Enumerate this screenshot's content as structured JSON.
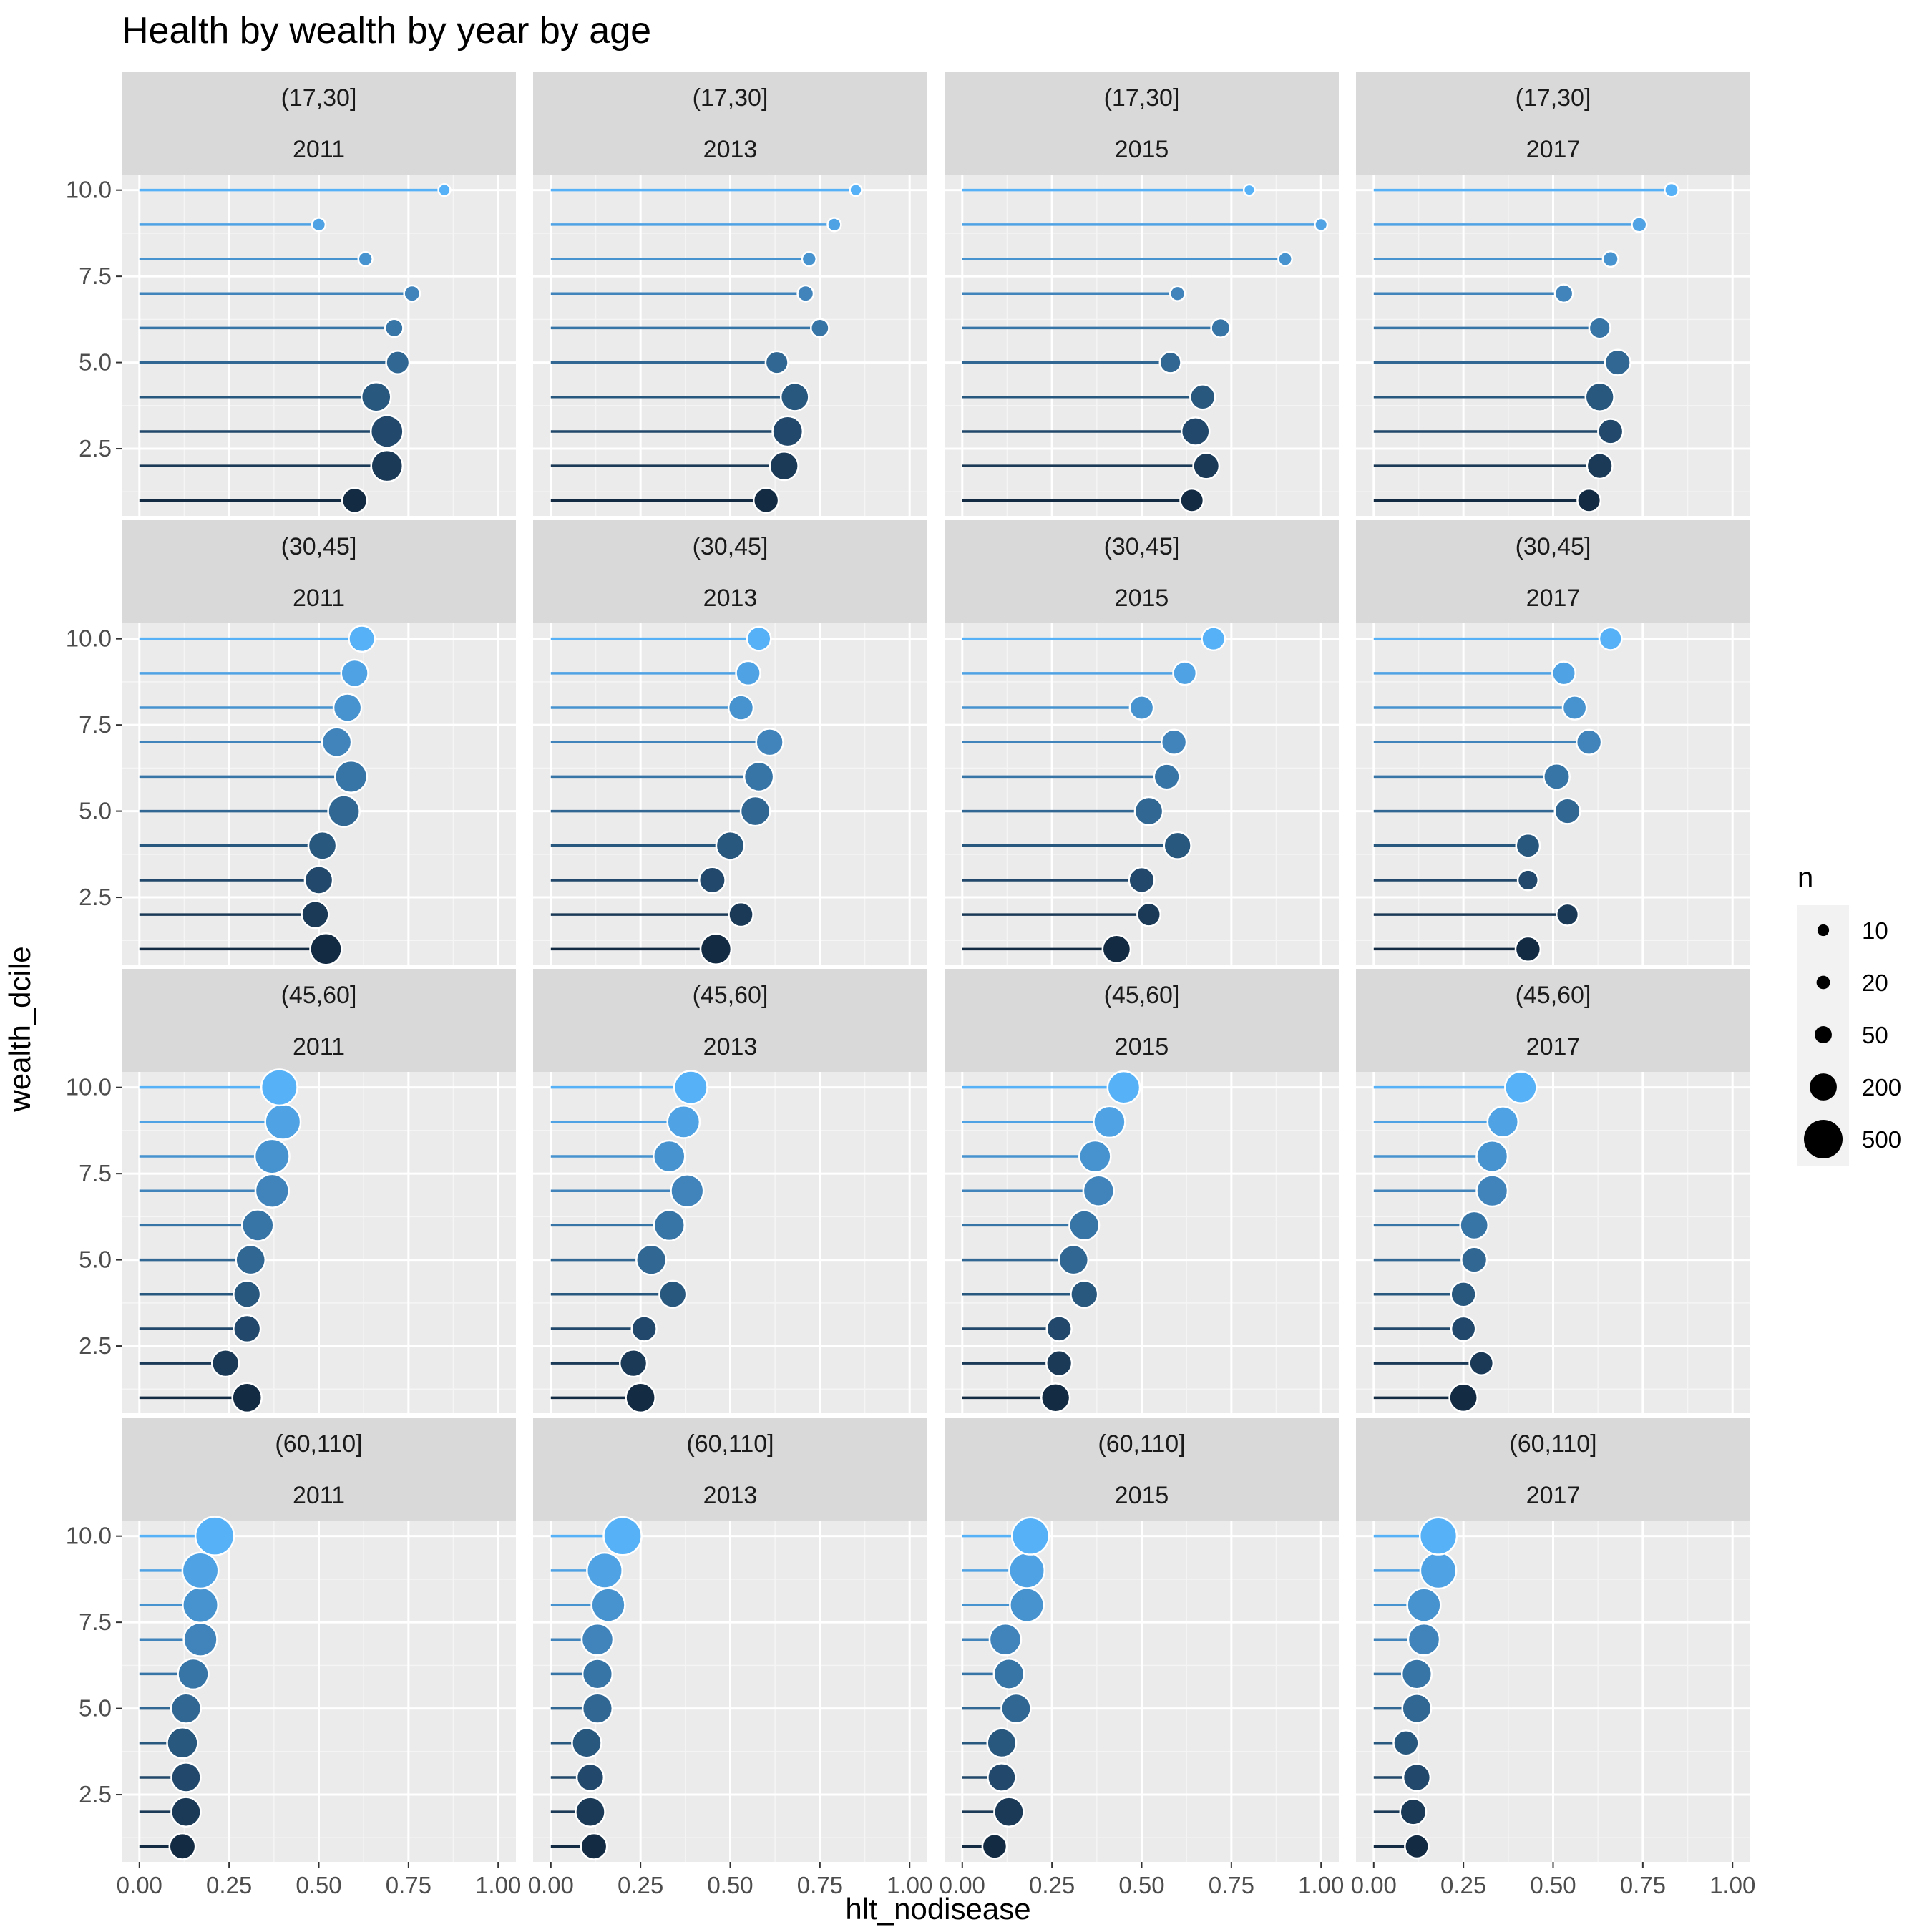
{
  "chart_data": {
    "type": "scatter",
    "subtype": "lollipop",
    "title": "Health by wealth by year by age",
    "xlabel": "hlt_nodisease",
    "ylabel": "wealth_dcile",
    "xlim": [
      0,
      1
    ],
    "ylim": [
      1,
      10
    ],
    "x_ticks": [
      "0.00",
      "0.25",
      "0.50",
      "0.75",
      "1.00"
    ],
    "y_ticks": [
      "2.5",
      "5.0",
      "7.5",
      "10.0"
    ],
    "grid": true,
    "facet_rows": [
      "(17,30]",
      "(30,45]",
      "(45,60]",
      "(60,110]"
    ],
    "facet_cols": [
      "2011",
      "2013",
      "2015",
      "2017"
    ],
    "colors": {
      "low": "#132B43",
      "high": "#56B1F7"
    },
    "legend": {
      "title": "n",
      "position": "right",
      "entries": [
        {
          "label": "10",
          "value": 10
        },
        {
          "label": "20",
          "value": 20
        },
        {
          "label": "50",
          "value": 50
        },
        {
          "label": "200",
          "value": 200
        },
        {
          "label": "500",
          "value": 500
        }
      ]
    },
    "panels": [
      {
        "age": "(17,30]",
        "year": "2011",
        "wealth_dcile": [
          1,
          2,
          3,
          4,
          5,
          6,
          7,
          8,
          9,
          10
        ],
        "hlt_nodisease": [
          0.6,
          0.69,
          0.69,
          0.66,
          0.72,
          0.71,
          0.76,
          0.63,
          0.5,
          0.85
        ],
        "n": [
          160,
          300,
          320,
          250,
          130,
          60,
          40,
          25,
          20,
          12
        ]
      },
      {
        "age": "(17,30]",
        "year": "2013",
        "wealth_dcile": [
          1,
          2,
          3,
          4,
          5,
          6,
          7,
          8,
          9,
          10
        ],
        "hlt_nodisease": [
          0.6,
          0.65,
          0.66,
          0.68,
          0.63,
          0.75,
          0.71,
          0.72,
          0.79,
          0.85
        ],
        "n": [
          160,
          230,
          270,
          220,
          120,
          60,
          40,
          25,
          20,
          12
        ]
      },
      {
        "age": "(17,30]",
        "year": "2015",
        "wealth_dcile": [
          1,
          2,
          3,
          4,
          5,
          6,
          7,
          8,
          9,
          10
        ],
        "hlt_nodisease": [
          0.64,
          0.68,
          0.65,
          0.67,
          0.58,
          0.72,
          0.6,
          0.9,
          1.0,
          0.8
        ],
        "n": [
          130,
          180,
          220,
          160,
          100,
          70,
          30,
          22,
          15,
          8
        ]
      },
      {
        "age": "(17,30]",
        "year": "2017",
        "wealth_dcile": [
          1,
          2,
          3,
          4,
          5,
          6,
          7,
          8,
          9,
          10
        ],
        "hlt_nodisease": [
          0.6,
          0.63,
          0.66,
          0.63,
          0.68,
          0.63,
          0.53,
          0.66,
          0.74,
          0.83
        ],
        "n": [
          130,
          170,
          160,
          230,
          170,
          100,
          60,
          35,
          30,
          22
        ]
      },
      {
        "age": "(30,45]",
        "year": "2011",
        "wealth_dcile": [
          1,
          2,
          3,
          4,
          5,
          6,
          7,
          8,
          9,
          10
        ],
        "hlt_nodisease": [
          0.52,
          0.49,
          0.5,
          0.51,
          0.57,
          0.59,
          0.55,
          0.58,
          0.6,
          0.62
        ],
        "n": [
          300,
          200,
          220,
          220,
          300,
          310,
          250,
          220,
          200,
          180
        ]
      },
      {
        "age": "(30,45]",
        "year": "2013",
        "wealth_dcile": [
          1,
          2,
          3,
          4,
          5,
          6,
          7,
          8,
          9,
          10
        ],
        "hlt_nodisease": [
          0.46,
          0.53,
          0.45,
          0.5,
          0.57,
          0.58,
          0.61,
          0.53,
          0.55,
          0.58
        ],
        "n": [
          280,
          150,
          180,
          220,
          250,
          250,
          200,
          160,
          150,
          140
        ]
      },
      {
        "age": "(30,45]",
        "year": "2015",
        "wealth_dcile": [
          1,
          2,
          3,
          4,
          5,
          6,
          7,
          8,
          9,
          10
        ],
        "hlt_nodisease": [
          0.43,
          0.52,
          0.5,
          0.6,
          0.52,
          0.57,
          0.59,
          0.5,
          0.62,
          0.7
        ],
        "n": [
          220,
          130,
          170,
          200,
          220,
          170,
          160,
          140,
          130,
          130
        ]
      },
      {
        "age": "(30,45]",
        "year": "2017",
        "wealth_dcile": [
          1,
          2,
          3,
          4,
          5,
          6,
          7,
          8,
          9,
          10
        ],
        "hlt_nodisease": [
          0.43,
          0.54,
          0.43,
          0.43,
          0.54,
          0.51,
          0.6,
          0.56,
          0.53,
          0.66
        ],
        "n": [
          160,
          110,
          90,
          140,
          170,
          180,
          160,
          140,
          130,
          120
        ]
      },
      {
        "age": "(45,60]",
        "year": "2011",
        "wealth_dcile": [
          1,
          2,
          3,
          4,
          5,
          6,
          7,
          8,
          9,
          10
        ],
        "hlt_nodisease": [
          0.3,
          0.24,
          0.3,
          0.3,
          0.31,
          0.33,
          0.37,
          0.37,
          0.4,
          0.39
        ],
        "n": [
          250,
          200,
          200,
          200,
          250,
          300,
          350,
          380,
          400,
          420
        ]
      },
      {
        "age": "(45,60]",
        "year": "2013",
        "wealth_dcile": [
          1,
          2,
          3,
          4,
          5,
          6,
          7,
          8,
          9,
          10
        ],
        "hlt_nodisease": [
          0.25,
          0.23,
          0.26,
          0.34,
          0.28,
          0.33,
          0.38,
          0.33,
          0.37,
          0.39
        ],
        "n": [
          250,
          200,
          160,
          200,
          260,
          280,
          330,
          300,
          320,
          340
        ]
      },
      {
        "age": "(45,60]",
        "year": "2015",
        "wealth_dcile": [
          1,
          2,
          3,
          4,
          5,
          6,
          7,
          8,
          9,
          10
        ],
        "hlt_nodisease": [
          0.26,
          0.27,
          0.27,
          0.34,
          0.31,
          0.34,
          0.38,
          0.37,
          0.41,
          0.45
        ],
        "n": [
          230,
          170,
          160,
          200,
          250,
          260,
          280,
          300,
          300,
          320
        ]
      },
      {
        "age": "(45,60]",
        "year": "2017",
        "wealth_dcile": [
          1,
          2,
          3,
          4,
          5,
          6,
          7,
          8,
          9,
          10
        ],
        "hlt_nodisease": [
          0.25,
          0.3,
          0.25,
          0.25,
          0.28,
          0.28,
          0.33,
          0.33,
          0.36,
          0.41
        ],
        "n": [
          220,
          140,
          150,
          160,
          170,
          220,
          290,
          290,
          280,
          300
        ]
      },
      {
        "age": "(60,110]",
        "year": "2011",
        "wealth_dcile": [
          1,
          2,
          3,
          4,
          5,
          6,
          7,
          8,
          9,
          10
        ],
        "hlt_nodisease": [
          0.12,
          0.13,
          0.13,
          0.12,
          0.13,
          0.15,
          0.17,
          0.17,
          0.17,
          0.21
        ],
        "n": [
          180,
          250,
          250,
          280,
          260,
          280,
          350,
          400,
          420,
          500
        ]
      },
      {
        "age": "(60,110]",
        "year": "2013",
        "wealth_dcile": [
          1,
          2,
          3,
          4,
          5,
          6,
          7,
          8,
          9,
          10
        ],
        "hlt_nodisease": [
          0.12,
          0.11,
          0.11,
          0.1,
          0.13,
          0.13,
          0.13,
          0.16,
          0.15,
          0.2
        ],
        "n": [
          180,
          250,
          200,
          250,
          260,
          260,
          300,
          350,
          400,
          480
        ]
      },
      {
        "age": "(60,110]",
        "year": "2015",
        "wealth_dcile": [
          1,
          2,
          3,
          4,
          5,
          6,
          7,
          8,
          9,
          10
        ],
        "hlt_nodisease": [
          0.09,
          0.13,
          0.11,
          0.11,
          0.15,
          0.13,
          0.12,
          0.18,
          0.18,
          0.19
        ],
        "n": [
          150,
          250,
          220,
          240,
          250,
          270,
          300,
          360,
          400,
          450
        ]
      },
      {
        "age": "(60,110]",
        "year": "2017",
        "wealth_dcile": [
          1,
          2,
          3,
          4,
          5,
          6,
          7,
          8,
          9,
          10
        ],
        "hlt_nodisease": [
          0.12,
          0.11,
          0.12,
          0.09,
          0.12,
          0.12,
          0.14,
          0.14,
          0.18,
          0.18
        ],
        "n": [
          140,
          180,
          200,
          160,
          240,
          260,
          300,
          350,
          420,
          450
        ]
      }
    ]
  }
}
